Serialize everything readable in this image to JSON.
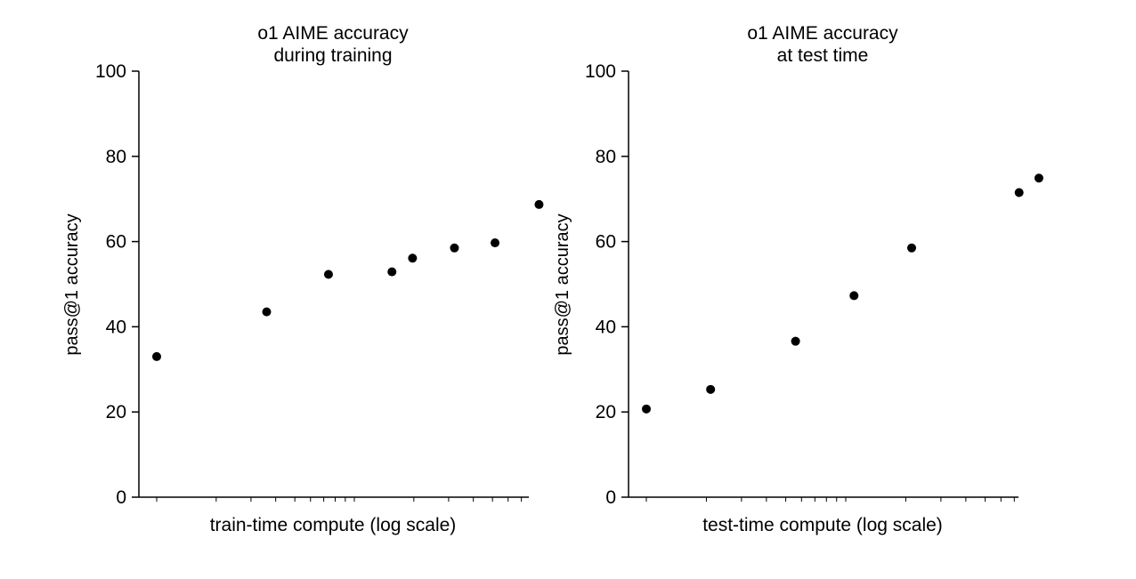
{
  "colors": {
    "background": "#ffffff",
    "axis": "#000000",
    "point": "#000000"
  },
  "chart_data": [
    {
      "type": "scatter",
      "title_lines": [
        "o1 AIME accuracy",
        "during training"
      ],
      "xlabel": "train-time compute (log scale)",
      "ylabel": "pass@1 accuracy",
      "ylim": [
        0,
        100
      ],
      "yticks": [
        "0",
        "20",
        "40",
        "60",
        "80",
        "100"
      ],
      "x_scale": "log",
      "x_tick_labels_shown": false,
      "grid": false,
      "legend": "none",
      "points": [
        {
          "x": 1.0,
          "y": 33
        },
        {
          "x": 3.6,
          "y": 43.5
        },
        {
          "x": 7.4,
          "y": 52.3
        },
        {
          "x": 15.5,
          "y": 52.9
        },
        {
          "x": 19.7,
          "y": 56.1
        },
        {
          "x": 32.1,
          "y": 58.5
        },
        {
          "x": 51.5,
          "y": 59.7
        },
        {
          "x": 86.0,
          "y": 68.7
        }
      ]
    },
    {
      "type": "scatter",
      "title_lines": [
        "o1 AIME accuracy",
        "at test time"
      ],
      "xlabel": "test-time compute (log scale)",
      "ylabel": "pass@1 accuracy",
      "ylim": [
        0,
        100
      ],
      "yticks": [
        "0",
        "20",
        "40",
        "60",
        "80",
        "100"
      ],
      "x_scale": "log",
      "x_tick_labels_shown": false,
      "grid": false,
      "legend": "none",
      "points": [
        {
          "x": 1.0,
          "y": 20.7
        },
        {
          "x": 2.1,
          "y": 25.3
        },
        {
          "x": 5.6,
          "y": 36.6
        },
        {
          "x": 11.0,
          "y": 47.3
        },
        {
          "x": 21.4,
          "y": 58.5
        },
        {
          "x": 74.0,
          "y": 71.5
        },
        {
          "x": 93.0,
          "y": 74.9
        }
      ]
    }
  ]
}
